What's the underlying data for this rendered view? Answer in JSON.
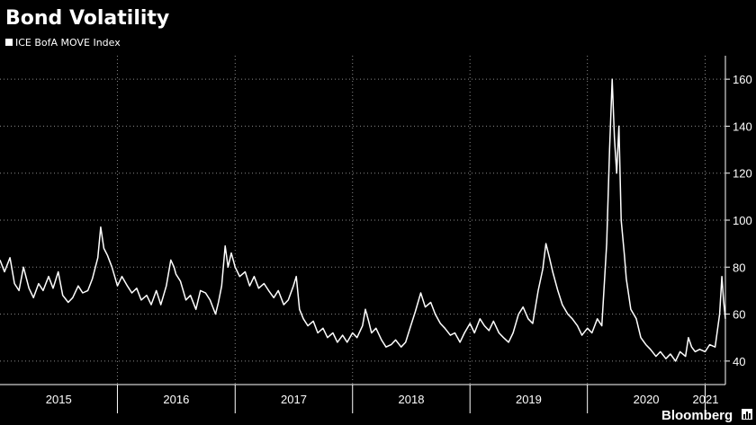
{
  "chart_data": {
    "type": "line",
    "title": "Bond Volatility",
    "xlabel": "",
    "ylabel": "",
    "legend_position": "top-left",
    "grid": "dotted",
    "x_start": "2015-01-01",
    "x_end": "2021-03-05",
    "ylim": [
      30,
      170
    ],
    "y_ticks": [
      40,
      60,
      80,
      100,
      120,
      140,
      160
    ],
    "x_tick_labels": [
      {
        "label": "2015",
        "year": 2015
      },
      {
        "label": "2016",
        "year": 2016
      },
      {
        "label": "2017",
        "year": 2017
      },
      {
        "label": "2018",
        "year": 2018
      },
      {
        "label": "2019",
        "year": 2019
      },
      {
        "label": "2020",
        "year": 2020
      },
      {
        "label": "2021",
        "year": 2021
      }
    ],
    "series": [
      {
        "name": "ICE BofA MOVE Index",
        "color": "#ffffff",
        "points": [
          [
            "2015-01-01",
            83
          ],
          [
            "2015-01-15",
            78
          ],
          [
            "2015-02-01",
            84
          ],
          [
            "2015-02-15",
            73
          ],
          [
            "2015-03-01",
            70
          ],
          [
            "2015-03-15",
            80
          ],
          [
            "2015-04-01",
            71
          ],
          [
            "2015-04-15",
            67
          ],
          [
            "2015-05-01",
            73
          ],
          [
            "2015-05-15",
            70
          ],
          [
            "2015-06-01",
            76
          ],
          [
            "2015-06-15",
            71
          ],
          [
            "2015-07-01",
            78
          ],
          [
            "2015-07-15",
            68
          ],
          [
            "2015-08-01",
            65
          ],
          [
            "2015-08-15",
            67
          ],
          [
            "2015-09-01",
            72
          ],
          [
            "2015-09-15",
            69
          ],
          [
            "2015-10-01",
            70
          ],
          [
            "2015-10-15",
            75
          ],
          [
            "2015-11-01",
            84
          ],
          [
            "2015-11-10",
            97
          ],
          [
            "2015-11-20",
            88
          ],
          [
            "2015-12-01",
            85
          ],
          [
            "2015-12-15",
            80
          ],
          [
            "2016-01-01",
            72
          ],
          [
            "2016-01-15",
            76
          ],
          [
            "2016-02-01",
            72
          ],
          [
            "2016-02-15",
            69
          ],
          [
            "2016-03-01",
            71
          ],
          [
            "2016-03-15",
            66
          ],
          [
            "2016-04-01",
            68
          ],
          [
            "2016-04-15",
            64
          ],
          [
            "2016-05-01",
            70
          ],
          [
            "2016-05-15",
            64
          ],
          [
            "2016-06-01",
            72
          ],
          [
            "2016-06-15",
            83
          ],
          [
            "2016-06-25",
            80
          ],
          [
            "2016-07-01",
            77
          ],
          [
            "2016-07-15",
            74
          ],
          [
            "2016-08-01",
            66
          ],
          [
            "2016-08-15",
            68
          ],
          [
            "2016-09-01",
            62
          ],
          [
            "2016-09-15",
            70
          ],
          [
            "2016-10-01",
            69
          ],
          [
            "2016-10-15",
            66
          ],
          [
            "2016-11-01",
            60
          ],
          [
            "2016-11-10",
            65
          ],
          [
            "2016-11-20",
            72
          ],
          [
            "2016-12-01",
            89
          ],
          [
            "2016-12-10",
            80
          ],
          [
            "2016-12-20",
            86
          ],
          [
            "2017-01-01",
            80
          ],
          [
            "2017-01-15",
            76
          ],
          [
            "2017-02-01",
            78
          ],
          [
            "2017-02-15",
            72
          ],
          [
            "2017-03-01",
            76
          ],
          [
            "2017-03-15",
            71
          ],
          [
            "2017-04-01",
            73
          ],
          [
            "2017-04-15",
            70
          ],
          [
            "2017-05-01",
            67
          ],
          [
            "2017-05-15",
            70
          ],
          [
            "2017-06-01",
            64
          ],
          [
            "2017-06-15",
            66
          ],
          [
            "2017-07-01",
            72
          ],
          [
            "2017-07-10",
            76
          ],
          [
            "2017-07-20",
            62
          ],
          [
            "2017-08-01",
            58
          ],
          [
            "2017-08-15",
            55
          ],
          [
            "2017-09-01",
            57
          ],
          [
            "2017-09-15",
            52
          ],
          [
            "2017-10-01",
            54
          ],
          [
            "2017-10-15",
            50
          ],
          [
            "2017-11-01",
            52
          ],
          [
            "2017-11-15",
            48
          ],
          [
            "2017-12-01",
            51
          ],
          [
            "2017-12-15",
            48
          ],
          [
            "2018-01-01",
            52
          ],
          [
            "2018-01-15",
            50
          ],
          [
            "2018-02-01",
            55
          ],
          [
            "2018-02-10",
            62
          ],
          [
            "2018-02-20",
            57
          ],
          [
            "2018-03-01",
            52
          ],
          [
            "2018-03-15",
            54
          ],
          [
            "2018-04-01",
            49
          ],
          [
            "2018-04-15",
            46
          ],
          [
            "2018-05-01",
            47
          ],
          [
            "2018-05-15",
            49
          ],
          [
            "2018-06-01",
            46
          ],
          [
            "2018-06-15",
            48
          ],
          [
            "2018-07-01",
            55
          ],
          [
            "2018-07-15",
            61
          ],
          [
            "2018-08-01",
            69
          ],
          [
            "2018-08-15",
            63
          ],
          [
            "2018-09-01",
            65
          ],
          [
            "2018-09-15",
            60
          ],
          [
            "2018-10-01",
            56
          ],
          [
            "2018-10-15",
            54
          ],
          [
            "2018-11-01",
            51
          ],
          [
            "2018-11-15",
            52
          ],
          [
            "2018-12-01",
            48
          ],
          [
            "2018-12-15",
            52
          ],
          [
            "2019-01-01",
            56
          ],
          [
            "2019-01-15",
            52
          ],
          [
            "2019-02-01",
            58
          ],
          [
            "2019-02-15",
            55
          ],
          [
            "2019-03-01",
            53
          ],
          [
            "2019-03-15",
            57
          ],
          [
            "2019-04-01",
            52
          ],
          [
            "2019-04-15",
            50
          ],
          [
            "2019-05-01",
            48
          ],
          [
            "2019-05-15",
            52
          ],
          [
            "2019-06-01",
            60
          ],
          [
            "2019-06-15",
            63
          ],
          [
            "2019-07-01",
            58
          ],
          [
            "2019-07-15",
            56
          ],
          [
            "2019-08-01",
            70
          ],
          [
            "2019-08-15",
            79
          ],
          [
            "2019-08-25",
            90
          ],
          [
            "2019-09-05",
            84
          ],
          [
            "2019-09-15",
            78
          ],
          [
            "2019-10-01",
            70
          ],
          [
            "2019-10-15",
            64
          ],
          [
            "2019-11-01",
            60
          ],
          [
            "2019-11-15",
            58
          ],
          [
            "2019-12-01",
            55
          ],
          [
            "2019-12-15",
            51
          ],
          [
            "2020-01-01",
            54
          ],
          [
            "2020-01-15",
            52
          ],
          [
            "2020-02-01",
            58
          ],
          [
            "2020-02-15",
            55
          ],
          [
            "2020-03-01",
            90
          ],
          [
            "2020-03-10",
            130
          ],
          [
            "2020-03-18",
            160
          ],
          [
            "2020-03-25",
            135
          ],
          [
            "2020-04-01",
            120
          ],
          [
            "2020-04-08",
            140
          ],
          [
            "2020-04-15",
            100
          ],
          [
            "2020-04-25",
            85
          ],
          [
            "2020-05-01",
            75
          ],
          [
            "2020-05-15",
            62
          ],
          [
            "2020-06-01",
            58
          ],
          [
            "2020-06-15",
            50
          ],
          [
            "2020-07-01",
            47
          ],
          [
            "2020-07-15",
            45
          ],
          [
            "2020-08-01",
            42
          ],
          [
            "2020-08-15",
            44
          ],
          [
            "2020-09-01",
            41
          ],
          [
            "2020-09-15",
            43
          ],
          [
            "2020-10-01",
            40
          ],
          [
            "2020-10-15",
            44
          ],
          [
            "2020-11-01",
            42
          ],
          [
            "2020-11-10",
            50
          ],
          [
            "2020-11-20",
            46
          ],
          [
            "2020-12-01",
            44
          ],
          [
            "2020-12-15",
            45
          ],
          [
            "2021-01-01",
            44
          ],
          [
            "2021-01-15",
            47
          ],
          [
            "2021-02-01",
            46
          ],
          [
            "2021-02-15",
            60
          ],
          [
            "2021-02-22",
            76
          ],
          [
            "2021-02-27",
            66
          ],
          [
            "2021-03-05",
            58
          ]
        ]
      }
    ]
  },
  "footer": {
    "brand": "Bloomberg"
  }
}
